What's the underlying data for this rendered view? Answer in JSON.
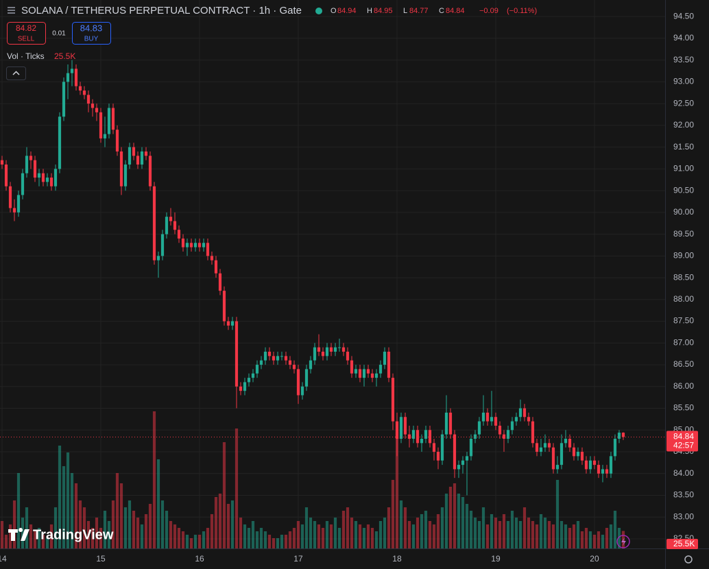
{
  "chart_data": {
    "type": "candlestick",
    "title": "SOLANA / TETHERUS PERPETUAL CONTRACT · 1h · Gate",
    "ohlc_letters": [
      "O",
      "H",
      "L",
      "C"
    ],
    "change": {
      "value": -0.09,
      "label": "−0.09"
    },
    "change_pct": {
      "value": -0.11,
      "label": "(−0.11%)"
    },
    "sell": {
      "price": 84.82,
      "label": "SELL"
    },
    "buy": {
      "price": 84.83,
      "label": "BUY"
    },
    "spread": 0.01,
    "volume_legend": "Vol · Ticks",
    "volume_value_label": "25.5K",
    "countdown": "42:57",
    "watermark": "TradingView",
    "up_color": "#22ab94",
    "down_color": "#f23645",
    "grid": true,
    "ylim": [
      82.28,
      94.88
    ],
    "xlim": [
      -0.5,
      161.17
    ],
    "volume_lim": [
      0,
      200
    ],
    "yticks": [
      {
        "value": 94.5,
        "label": "94.50"
      },
      {
        "value": 94,
        "label": "94.00"
      },
      {
        "value": 93.5,
        "label": "93.50"
      },
      {
        "value": 93,
        "label": "93.00"
      },
      {
        "value": 92.5,
        "label": "92.50"
      },
      {
        "value": 92,
        "label": "92.00"
      },
      {
        "value": 91.5,
        "label": "91.50"
      },
      {
        "value": 91,
        "label": "91.00"
      },
      {
        "value": 90.5,
        "label": "90.50"
      },
      {
        "value": 90,
        "label": "90.00"
      },
      {
        "value": 89.5,
        "label": "89.50"
      },
      {
        "value": 89,
        "label": "89.00"
      },
      {
        "value": 88.5,
        "label": "88.50"
      },
      {
        "value": 88,
        "label": "88.00"
      },
      {
        "value": 87.5,
        "label": "87.50"
      },
      {
        "value": 87,
        "label": "87.00"
      },
      {
        "value": 86.5,
        "label": "86.50"
      },
      {
        "value": 86,
        "label": "86.00"
      },
      {
        "value": 85.5,
        "label": "85.50"
      },
      {
        "value": 85,
        "label": "85.00"
      },
      {
        "value": 84.5,
        "label": "84.50"
      },
      {
        "value": 84,
        "label": "84.00"
      },
      {
        "value": 83.5,
        "label": "83.50"
      },
      {
        "value": 83,
        "label": "83.00"
      },
      {
        "value": 82.5,
        "label": "82.50"
      }
    ],
    "xticks": [
      {
        "value": 0,
        "label": "14"
      },
      {
        "value": 24,
        "label": "15"
      },
      {
        "value": 48,
        "label": "16"
      },
      {
        "value": 72,
        "label": "17"
      },
      {
        "value": 96,
        "label": "18"
      },
      {
        "value": 120,
        "label": "19"
      },
      {
        "value": 144,
        "label": "20"
      }
    ],
    "ohlc": [
      [
        91.2,
        91.3,
        91.0,
        91.1
      ],
      [
        91.1,
        91.2,
        90.5,
        90.6
      ],
      [
        90.6,
        90.7,
        90.0,
        90.1
      ],
      [
        90.1,
        90.3,
        89.8,
        90.0
      ],
      [
        90.0,
        90.5,
        89.9,
        90.4
      ],
      [
        90.4,
        91.0,
        90.3,
        90.9
      ],
      [
        90.9,
        91.5,
        90.8,
        91.3
      ],
      [
        91.3,
        91.4,
        91.0,
        91.2
      ],
      [
        91.2,
        91.3,
        90.7,
        90.8
      ],
      [
        90.8,
        91.0,
        90.6,
        90.9
      ],
      [
        90.9,
        91.0,
        90.6,
        90.7
      ],
      [
        90.7,
        90.9,
        90.6,
        90.8
      ],
      [
        90.8,
        90.9,
        90.5,
        90.6
      ],
      [
        90.6,
        91.1,
        90.5,
        91.0
      ],
      [
        91.0,
        92.3,
        90.9,
        92.2
      ],
      [
        92.2,
        93.1,
        92.1,
        93.0
      ],
      [
        93.0,
        93.4,
        92.6,
        93.2
      ],
      [
        93.2,
        93.5,
        92.9,
        93.3
      ],
      [
        93.3,
        93.4,
        92.8,
        92.9
      ],
      [
        92.9,
        93.0,
        92.7,
        92.8
      ],
      [
        92.8,
        92.9,
        92.6,
        92.7
      ],
      [
        92.7,
        92.8,
        92.3,
        92.5
      ],
      [
        92.5,
        92.6,
        92.2,
        92.4
      ],
      [
        92.4,
        92.5,
        92.1,
        92.3
      ],
      [
        92.3,
        92.4,
        91.6,
        91.7
      ],
      [
        91.7,
        92.2,
        91.5,
        91.8
      ],
      [
        91.8,
        92.5,
        91.7,
        92.4
      ],
      [
        92.4,
        92.5,
        91.8,
        91.9
      ],
      [
        91.9,
        92.0,
        91.3,
        91.4
      ],
      [
        91.4,
        91.5,
        90.4,
        90.6
      ],
      [
        90.6,
        91.2,
        90.5,
        91.1
      ],
      [
        91.1,
        91.6,
        91.0,
        91.5
      ],
      [
        91.5,
        91.6,
        91.2,
        91.3
      ],
      [
        91.3,
        91.4,
        91.0,
        91.1
      ],
      [
        91.1,
        91.5,
        91.0,
        91.4
      ],
      [
        91.4,
        91.5,
        91.2,
        91.3
      ],
      [
        91.3,
        91.4,
        90.5,
        90.6
      ],
      [
        90.6,
        90.7,
        88.8,
        88.9
      ],
      [
        88.9,
        89.1,
        88.5,
        89.0
      ],
      [
        89.0,
        89.6,
        88.9,
        89.5
      ],
      [
        89.5,
        90.0,
        89.4,
        89.9
      ],
      [
        89.9,
        90.1,
        89.7,
        89.8
      ],
      [
        89.8,
        90.0,
        89.5,
        89.6
      ],
      [
        89.6,
        89.7,
        89.3,
        89.4
      ],
      [
        89.4,
        89.5,
        89.1,
        89.2
      ],
      [
        89.2,
        89.4,
        89.0,
        89.3
      ],
      [
        89.3,
        89.4,
        89.1,
        89.2
      ],
      [
        89.2,
        89.4,
        89.1,
        89.3
      ],
      [
        89.3,
        89.4,
        89.1,
        89.2
      ],
      [
        89.2,
        89.4,
        89.1,
        89.3
      ],
      [
        89.3,
        89.4,
        88.9,
        89.0
      ],
      [
        89.0,
        89.1,
        88.8,
        88.9
      ],
      [
        88.9,
        89.0,
        88.5,
        88.6
      ],
      [
        88.6,
        88.7,
        88.1,
        88.2
      ],
      [
        88.2,
        88.3,
        87.4,
        87.5
      ],
      [
        87.5,
        87.6,
        87.3,
        87.4
      ],
      [
        87.4,
        87.6,
        87.3,
        87.5
      ],
      [
        87.5,
        87.6,
        85.5,
        86.0
      ],
      [
        86.0,
        86.1,
        85.8,
        85.9
      ],
      [
        85.9,
        86.2,
        85.8,
        86.1
      ],
      [
        86.1,
        86.3,
        86.0,
        86.2
      ],
      [
        86.2,
        86.4,
        86.1,
        86.3
      ],
      [
        86.3,
        86.6,
        86.2,
        86.5
      ],
      [
        86.5,
        86.7,
        86.4,
        86.6
      ],
      [
        86.6,
        86.9,
        86.5,
        86.8
      ],
      [
        86.8,
        86.9,
        86.6,
        86.7
      ],
      [
        86.7,
        86.8,
        86.5,
        86.6
      ],
      [
        86.6,
        86.8,
        86.5,
        86.7
      ],
      [
        86.7,
        86.8,
        86.6,
        86.7
      ],
      [
        86.7,
        86.8,
        86.5,
        86.6
      ],
      [
        86.6,
        86.7,
        86.4,
        86.5
      ],
      [
        86.5,
        86.6,
        86.3,
        86.4
      ],
      [
        86.4,
        86.5,
        85.6,
        85.8
      ],
      [
        85.8,
        86.1,
        85.7,
        86.0
      ],
      [
        86.0,
        86.5,
        85.9,
        86.4
      ],
      [
        86.4,
        86.7,
        86.3,
        86.6
      ],
      [
        86.6,
        87.0,
        86.5,
        86.9
      ],
      [
        86.9,
        87.2,
        86.7,
        86.8
      ],
      [
        86.8,
        86.9,
        86.6,
        86.7
      ],
      [
        86.7,
        87.0,
        86.6,
        86.9
      ],
      [
        86.9,
        87.0,
        86.7,
        86.8
      ],
      [
        86.8,
        87.0,
        86.7,
        86.9
      ],
      [
        86.9,
        87.1,
        86.8,
        86.9
      ],
      [
        86.9,
        87.0,
        86.7,
        86.8
      ],
      [
        86.8,
        86.9,
        86.5,
        86.6
      ],
      [
        86.6,
        86.7,
        86.2,
        86.3
      ],
      [
        86.3,
        86.5,
        86.2,
        86.4
      ],
      [
        86.4,
        86.5,
        86.1,
        86.2
      ],
      [
        86.2,
        86.5,
        86.0,
        86.4
      ],
      [
        86.4,
        86.5,
        86.2,
        86.3
      ],
      [
        86.3,
        86.4,
        86.1,
        86.2
      ],
      [
        86.2,
        86.4,
        86.0,
        86.3
      ],
      [
        86.3,
        86.6,
        86.2,
        86.5
      ],
      [
        86.5,
        86.9,
        86.4,
        86.8
      ],
      [
        86.8,
        86.9,
        86.1,
        86.2
      ],
      [
        86.2,
        86.3,
        85.0,
        85.2
      ],
      [
        85.2,
        85.4,
        84.4,
        84.8
      ],
      [
        84.8,
        85.4,
        84.7,
        85.3
      ],
      [
        85.3,
        85.4,
        84.8,
        84.9
      ],
      [
        84.9,
        85.1,
        84.6,
        84.8
      ],
      [
        84.8,
        85.1,
        84.7,
        85.0
      ],
      [
        85.0,
        85.1,
        84.6,
        84.7
      ],
      [
        84.7,
        84.9,
        84.5,
        84.8
      ],
      [
        84.8,
        85.1,
        84.7,
        85.0
      ],
      [
        85.0,
        85.1,
        84.6,
        84.7
      ],
      [
        84.7,
        84.8,
        84.3,
        84.5
      ],
      [
        84.5,
        84.6,
        84.1,
        84.3
      ],
      [
        84.3,
        85.0,
        84.2,
        84.9
      ],
      [
        84.9,
        85.8,
        84.8,
        85.4
      ],
      [
        85.4,
        85.5,
        84.8,
        84.9
      ],
      [
        84.9,
        85.0,
        83.9,
        84.1
      ],
      [
        84.1,
        84.3,
        83.9,
        84.2
      ],
      [
        84.2,
        84.4,
        84.0,
        84.3
      ],
      [
        84.3,
        84.5,
        83.5,
        84.4
      ],
      [
        84.4,
        84.9,
        84.3,
        84.8
      ],
      [
        84.8,
        85.0,
        84.7,
        84.9
      ],
      [
        84.9,
        85.3,
        84.8,
        85.2
      ],
      [
        85.2,
        85.8,
        85.1,
        85.4
      ],
      [
        85.4,
        85.5,
        85.1,
        85.2
      ],
      [
        85.2,
        85.9,
        85.1,
        85.3
      ],
      [
        85.3,
        85.4,
        85.0,
        85.1
      ],
      [
        85.1,
        85.2,
        84.8,
        84.9
      ],
      [
        84.9,
        85.0,
        84.5,
        84.8
      ],
      [
        84.8,
        85.1,
        84.7,
        85.0
      ],
      [
        85.0,
        85.3,
        84.9,
        85.2
      ],
      [
        85.2,
        85.4,
        85.1,
        85.3
      ],
      [
        85.3,
        85.7,
        85.2,
        85.5
      ],
      [
        85.5,
        85.6,
        85.2,
        85.3
      ],
      [
        85.3,
        85.4,
        85.1,
        85.2
      ],
      [
        85.2,
        85.3,
        84.6,
        84.7
      ],
      [
        84.7,
        84.8,
        84.4,
        84.5
      ],
      [
        84.5,
        84.8,
        84.4,
        84.6
      ],
      [
        84.6,
        84.9,
        84.5,
        84.7
      ],
      [
        84.7,
        84.8,
        84.5,
        84.6
      ],
      [
        84.6,
        84.7,
        84.0,
        84.1
      ],
      [
        84.1,
        84.4,
        84.0,
        84.2
      ],
      [
        84.2,
        84.9,
        84.1,
        84.7
      ],
      [
        84.7,
        85.0,
        84.6,
        84.8
      ],
      [
        84.8,
        84.9,
        84.5,
        84.6
      ],
      [
        84.6,
        84.7,
        84.3,
        84.4
      ],
      [
        84.4,
        84.6,
        84.3,
        84.5
      ],
      [
        84.5,
        84.6,
        84.2,
        84.3
      ],
      [
        84.3,
        84.4,
        84.0,
        84.1
      ],
      [
        84.1,
        84.4,
        84.0,
        84.3
      ],
      [
        84.3,
        84.4,
        84.1,
        84.2
      ],
      [
        84.2,
        84.3,
        83.9,
        84.0
      ],
      [
        84.0,
        84.2,
        83.8,
        84.1
      ],
      [
        84.1,
        84.2,
        83.9,
        84.0
      ],
      [
        84.0,
        84.5,
        83.9,
        84.4
      ],
      [
        84.4,
        84.9,
        84.3,
        84.8
      ],
      [
        84.8,
        85.0,
        84.7,
        84.94
      ],
      [
        84.94,
        84.95,
        84.77,
        84.84
      ]
    ],
    "volume": [
      40,
      20,
      35,
      70,
      110,
      45,
      60,
      35,
      25,
      30,
      20,
      15,
      35,
      60,
      150,
      120,
      140,
      110,
      95,
      70,
      60,
      40,
      30,
      45,
      30,
      55,
      40,
      70,
      110,
      95,
      60,
      70,
      55,
      45,
      35,
      50,
      65,
      200,
      130,
      70,
      55,
      40,
      35,
      30,
      25,
      20,
      15,
      20,
      20,
      25,
      30,
      50,
      75,
      80,
      155,
      65,
      70,
      175,
      45,
      35,
      30,
      40,
      25,
      30,
      25,
      20,
      15,
      15,
      20,
      20,
      25,
      30,
      40,
      35,
      60,
      45,
      40,
      35,
      30,
      40,
      35,
      45,
      30,
      55,
      60,
      45,
      40,
      35,
      30,
      35,
      30,
      25,
      40,
      45,
      60,
      100,
      170,
      70,
      60,
      40,
      35,
      45,
      50,
      55,
      40,
      35,
      50,
      60,
      80,
      90,
      95,
      80,
      75,
      65,
      55,
      45,
      40,
      60,
      35,
      50,
      45,
      40,
      50,
      40,
      55,
      45,
      40,
      60,
      45,
      40,
      35,
      50,
      45,
      40,
      35,
      100,
      40,
      35,
      30,
      35,
      40,
      25,
      30,
      25,
      20,
      25,
      20,
      30,
      35,
      55,
      30,
      25.5
    ]
  }
}
